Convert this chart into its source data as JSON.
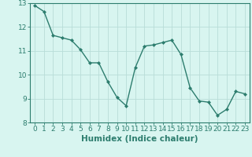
{
  "x": [
    0,
    1,
    2,
    3,
    4,
    5,
    6,
    7,
    8,
    9,
    10,
    11,
    12,
    13,
    14,
    15,
    16,
    17,
    18,
    19,
    20,
    21,
    22,
    23
  ],
  "y": [
    12.9,
    12.65,
    11.65,
    11.55,
    11.45,
    11.05,
    10.5,
    10.5,
    9.7,
    9.05,
    8.7,
    10.3,
    11.2,
    11.25,
    11.35,
    11.45,
    10.85,
    9.45,
    8.9,
    8.85,
    8.3,
    8.55,
    9.3,
    9.2
  ],
  "line_color": "#2d7d6e",
  "marker": "D",
  "markersize": 2.0,
  "linewidth": 1.0,
  "bg_color": "#d8f5f0",
  "grid_color": "#b8ddd8",
  "xlabel": "Humidex (Indice chaleur)",
  "xlim": [
    -0.5,
    23.5
  ],
  "ylim": [
    8,
    13
  ],
  "yticks": [
    8,
    9,
    10,
    11,
    12,
    13
  ],
  "xticks": [
    0,
    1,
    2,
    3,
    4,
    5,
    6,
    7,
    8,
    9,
    10,
    11,
    12,
    13,
    14,
    15,
    16,
    17,
    18,
    19,
    20,
    21,
    22,
    23
  ],
  "xlabel_fontsize": 7.5,
  "tick_fontsize": 6.5
}
